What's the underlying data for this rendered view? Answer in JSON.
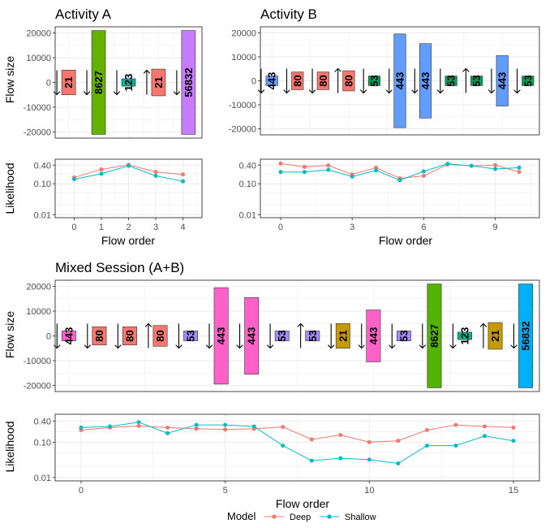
{
  "colors": {
    "deep": "#F8766D",
    "shallow": "#00BFC4",
    "flows": {
      "21": "#F8766D",
      "80": "#F8766D",
      "8627": "#64B200",
      "123": "#00B5A2",
      "56832": "#C77CFF",
      "443": "#619CFF",
      "53": "#00A660"
    },
    "flows_mixed": {
      "21": "#C49A00",
      "80": "#F8766D",
      "8627": "#53B400",
      "123": "#00B68A",
      "56832": "#00B0F6",
      "443": "#FF61C9",
      "53": "#A58AFF"
    }
  },
  "legend": {
    "title": "Model",
    "items": [
      {
        "key": "deep",
        "label": "Deep"
      },
      {
        "key": "shallow",
        "label": "Shallow"
      }
    ]
  },
  "chart_data": [
    {
      "type": "bar",
      "title": "Activity A",
      "ylabel": "Flow size",
      "xlabel": "",
      "yticks": [
        20000,
        10000,
        0,
        -10000,
        -20000
      ],
      "ytick_labels": [
        "20000",
        "10000",
        "0",
        "-10000",
        "-20000"
      ],
      "bars": [
        {
          "x": 0,
          "label": "21",
          "value": 5000,
          "direction": "down"
        },
        {
          "x": 1,
          "label": "8627",
          "value": 21000,
          "direction": "down"
        },
        {
          "x": 2,
          "label": "123",
          "value": 1500,
          "direction": "down"
        },
        {
          "x": 3,
          "label": "21",
          "value": 5400,
          "direction": "up"
        },
        {
          "x": 4,
          "label": "56832",
          "value": 21000,
          "direction": "down"
        }
      ]
    },
    {
      "type": "bar",
      "title": "Activity B",
      "ylabel": "",
      "xlabel": "",
      "yticks": [
        20000,
        10000,
        0,
        -10000,
        -20000
      ],
      "ytick_labels": [
        "20000",
        "10000",
        "0",
        "-10000",
        "-20000"
      ],
      "bars": [
        {
          "x": 0,
          "label": "443",
          "value": 2000,
          "direction": "down"
        },
        {
          "x": 1,
          "label": "80",
          "value": 3700,
          "direction": "down"
        },
        {
          "x": 2,
          "label": "80",
          "value": 3700,
          "direction": "down"
        },
        {
          "x": 3,
          "label": "80",
          "value": 4200,
          "direction": "up"
        },
        {
          "x": 4,
          "label": "53",
          "value": 2000,
          "direction": "down"
        },
        {
          "x": 5,
          "label": "443",
          "value": 19500,
          "direction": "down"
        },
        {
          "x": 6,
          "label": "443",
          "value": 15500,
          "direction": "down"
        },
        {
          "x": 7,
          "label": "53",
          "value": 2000,
          "direction": "down"
        },
        {
          "x": 8,
          "label": "53",
          "value": 2000,
          "direction": "up"
        },
        {
          "x": 9,
          "label": "443",
          "value": 10500,
          "direction": "down"
        },
        {
          "x": 10,
          "label": "53",
          "value": 2000,
          "direction": "down"
        }
      ]
    },
    {
      "type": "line",
      "title": "",
      "ylabel": "Likelihood",
      "xlabel": "Flow order",
      "x": [
        0,
        1,
        2,
        3,
        4
      ],
      "xticks": [
        0,
        1,
        2,
        3,
        4
      ],
      "yticks": [
        0.4,
        0.1,
        0.01
      ],
      "ytick_labels": [
        "0.40",
        "0.10",
        "0.01"
      ],
      "series": [
        {
          "name": "Deep",
          "values": [
            0.16,
            0.29,
            0.41,
            0.24,
            0.2
          ]
        },
        {
          "name": "Shallow",
          "values": [
            0.14,
            0.21,
            0.38,
            0.18,
            0.12
          ]
        }
      ]
    },
    {
      "type": "line",
      "title": "",
      "ylabel": "",
      "xlabel": "Flow order",
      "x": [
        0,
        1,
        2,
        3,
        4,
        5,
        6,
        7,
        8,
        9,
        10
      ],
      "xticks": [
        0,
        3,
        6,
        9
      ],
      "yticks": [
        0.4,
        0.1,
        0.01
      ],
      "ytick_labels": [
        "0.40",
        "0.10",
        "0.01"
      ],
      "series": [
        {
          "name": "Deep",
          "values": [
            0.45,
            0.35,
            0.39,
            0.2,
            0.33,
            0.15,
            0.18,
            0.42,
            0.38,
            0.4,
            0.24
          ]
        },
        {
          "name": "Shallow",
          "values": [
            0.24,
            0.24,
            0.28,
            0.17,
            0.27,
            0.13,
            0.25,
            0.44,
            0.38,
            0.3,
            0.33
          ]
        }
      ]
    },
    {
      "type": "bar",
      "title": "Mixed Session (A+B)",
      "ylabel": "Flow size",
      "xlabel": "",
      "yticks": [
        20000,
        10000,
        0,
        -10000,
        -20000
      ],
      "ytick_labels": [
        "20000",
        "10000",
        "0",
        "-10000",
        "-20000"
      ],
      "bars": [
        {
          "x": 0,
          "label": "443",
          "value": 2000,
          "direction": "down"
        },
        {
          "x": 1,
          "label": "80",
          "value": 3700,
          "direction": "down"
        },
        {
          "x": 2,
          "label": "80",
          "value": 3700,
          "direction": "down"
        },
        {
          "x": 3,
          "label": "80",
          "value": 4200,
          "direction": "up"
        },
        {
          "x": 4,
          "label": "53",
          "value": 2000,
          "direction": "down"
        },
        {
          "x": 5,
          "label": "443",
          "value": 19500,
          "direction": "down"
        },
        {
          "x": 6,
          "label": "443",
          "value": 15500,
          "direction": "down"
        },
        {
          "x": 7,
          "label": "53",
          "value": 2000,
          "direction": "down"
        },
        {
          "x": 8,
          "label": "53",
          "value": 2000,
          "direction": "up"
        },
        {
          "x": 9,
          "label": "21",
          "value": 5000,
          "direction": "down"
        },
        {
          "x": 10,
          "label": "443",
          "value": 10500,
          "direction": "down"
        },
        {
          "x": 11,
          "label": "53",
          "value": 2000,
          "direction": "down"
        },
        {
          "x": 12,
          "label": "8627",
          "value": 21000,
          "direction": "down"
        },
        {
          "x": 13,
          "label": "123",
          "value": 1500,
          "direction": "down"
        },
        {
          "x": 14,
          "label": "21",
          "value": 5400,
          "direction": "up"
        },
        {
          "x": 15,
          "label": "56832",
          "value": 21000,
          "direction": "down"
        }
      ]
    },
    {
      "type": "line",
      "title": "",
      "ylabel": "Likelihood",
      "xlabel": "Flow order",
      "x": [
        0,
        1,
        2,
        3,
        4,
        5,
        6,
        7,
        8,
        9,
        10,
        11,
        12,
        13,
        14,
        15
      ],
      "xticks": [
        0,
        5,
        10,
        15
      ],
      "yticks": [
        0.4,
        0.1,
        0.01
      ],
      "ytick_labels": [
        "0.40",
        "0.10",
        "0.01"
      ],
      "series": [
        {
          "name": "Deep",
          "values": [
            0.22,
            0.26,
            0.29,
            0.26,
            0.24,
            0.23,
            0.24,
            0.27,
            0.12,
            0.16,
            0.1,
            0.11,
            0.22,
            0.31,
            0.28,
            0.26
          ]
        },
        {
          "name": "Shallow",
          "values": [
            0.26,
            0.28,
            0.37,
            0.18,
            0.31,
            0.31,
            0.28,
            0.08,
            0.03,
            0.035,
            0.032,
            0.025,
            0.08,
            0.08,
            0.15,
            0.11
          ]
        }
      ]
    }
  ]
}
